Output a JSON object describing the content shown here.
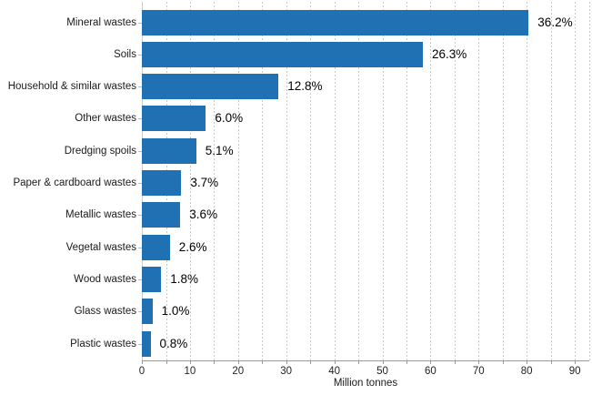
{
  "chart_data": {
    "type": "bar",
    "orientation": "horizontal",
    "title": "",
    "xlabel": "Million tonnes",
    "categories": [
      "Mineral wastes",
      "Soils",
      "Household & similar wastes",
      "Other wastes",
      "Dredging spoils",
      "Paper & cardboard wastes",
      "Metallic wastes",
      "Vegetal wastes",
      "Wood wastes",
      "Glass wastes",
      "Plastic wastes"
    ],
    "values_million_tonnes": [
      80.4,
      58.4,
      28.4,
      13.3,
      11.3,
      8.2,
      8.0,
      5.8,
      4.0,
      2.2,
      1.8
    ],
    "bar_labels": [
      "36.2%",
      "26.3%",
      "12.8%",
      "6.0%",
      "5.1%",
      "3.7%",
      "3.6%",
      "2.6%",
      "1.8%",
      "1.0%",
      "0.8%"
    ],
    "x_ticks": [
      0,
      10,
      20,
      30,
      40,
      50,
      60,
      70,
      80,
      90
    ],
    "xlim": [
      0,
      93
    ],
    "minor_grid_step": 5,
    "grid": "vertical-dashed",
    "legend": "none",
    "colors": {
      "bar": "#2070b4",
      "grid": "#c9c9c9",
      "axis": "#999999",
      "category_text": "#1a1a1a",
      "data_label": "#000000",
      "background": "#ffffff"
    }
  }
}
